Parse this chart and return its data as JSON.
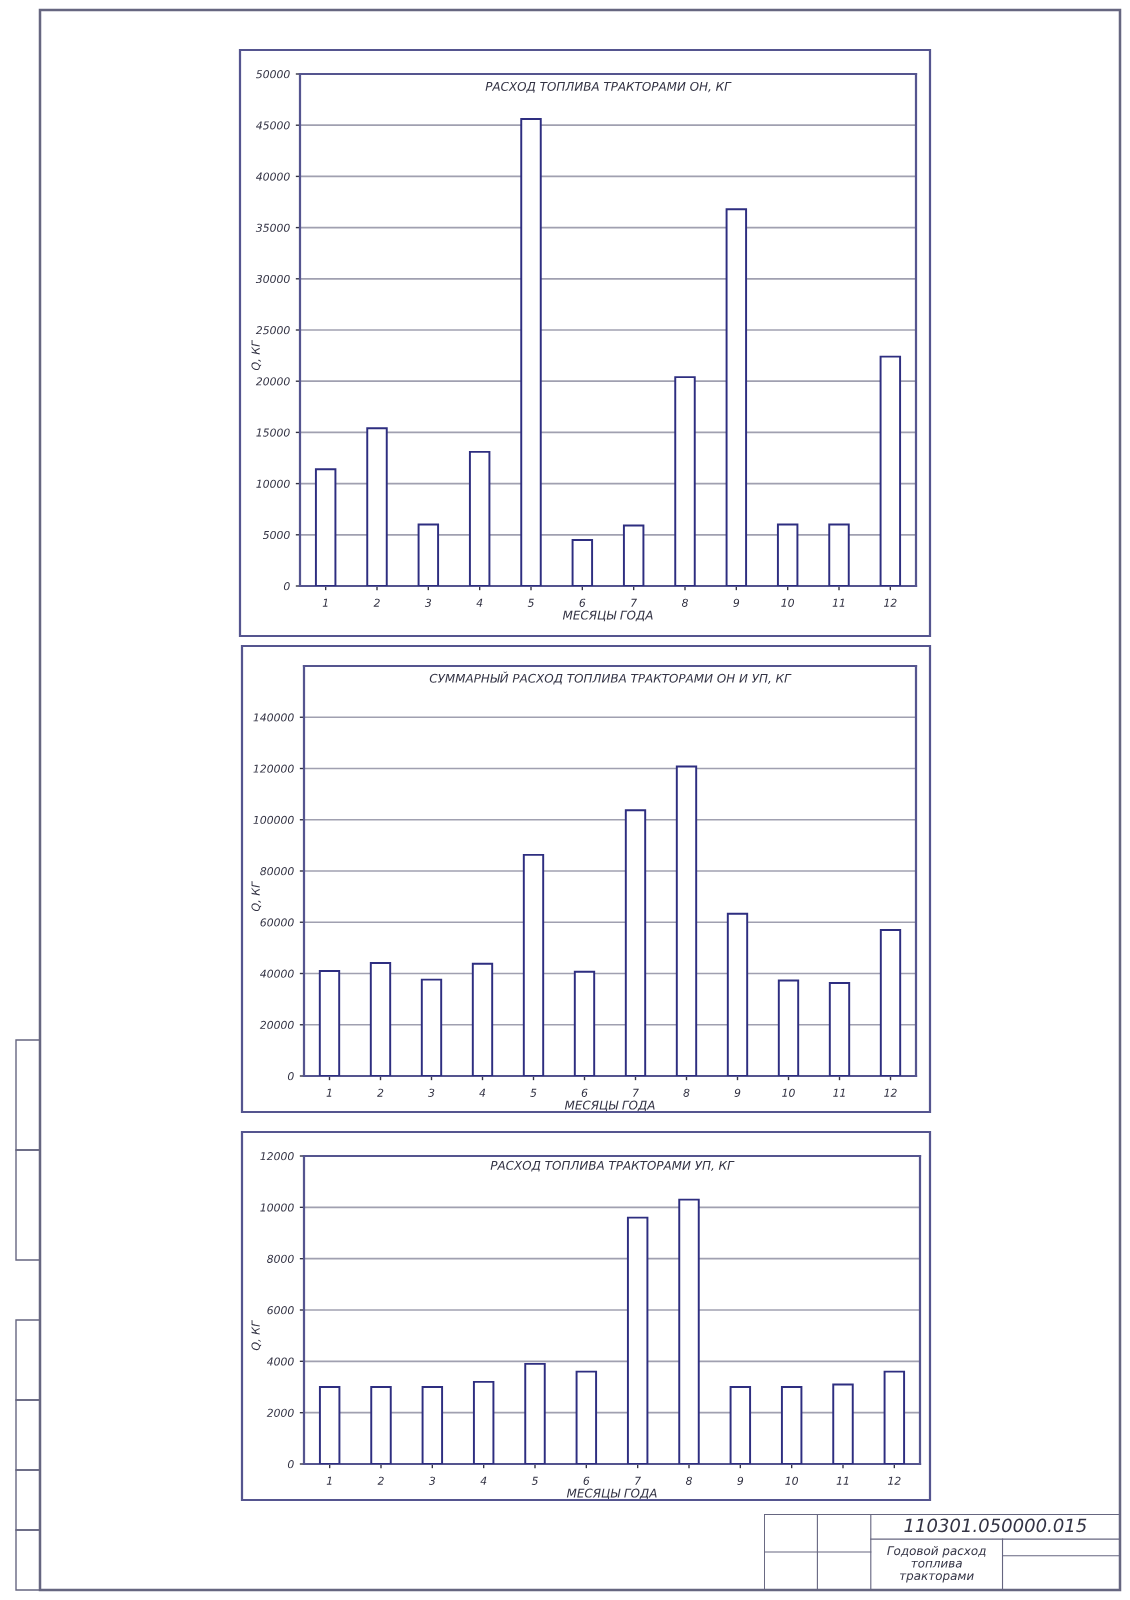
{
  "chart_data": [
    {
      "type": "bar",
      "title": "РАСХОД ТОПЛИВА ТРАКТОРАМИ ОН, КГ",
      "xlabel": "МЕСЯЦЫ ГОДА",
      "ylabel": "Q, КГ",
      "categories": [
        "1",
        "2",
        "3",
        "4",
        "5",
        "6",
        "7",
        "8",
        "9",
        "10",
        "11",
        "12"
      ],
      "values": [
        11400,
        15400,
        6000,
        13100,
        45600,
        4500,
        5900,
        20400,
        36800,
        6000,
        6000,
        22400
      ],
      "color": "#ffffff",
      "ylim": [
        0,
        50000
      ],
      "yticks": [
        0,
        5000,
        10000,
        15000,
        20000,
        25000,
        30000,
        35000,
        40000,
        45000,
        50000
      ],
      "grid": "y"
    },
    {
      "type": "bar",
      "title": "СУММАРНЫЙ РАСХОД ТОПЛИВА ТРАКТОРАМИ ОН И УП, КГ",
      "xlabel": "МЕСЯЦЫ ГОДА",
      "ylabel": "Q, КГ",
      "categories": [
        "1",
        "2",
        "3",
        "4",
        "5",
        "6",
        "7",
        "8",
        "9",
        "10",
        "11",
        "12"
      ],
      "values": [
        41000,
        44100,
        37600,
        43800,
        86300,
        40700,
        103700,
        120800,
        63300,
        37300,
        36300,
        57000
      ],
      "color": "#ffffff",
      "ylim": [
        0,
        160000
      ],
      "yticks": [
        0,
        20000,
        40000,
        60000,
        80000,
        100000,
        120000,
        140000
      ],
      "grid": "y"
    },
    {
      "type": "bar",
      "title": "РАСХОД ТОПЛИВА ТРАКТОРАМИ УП, КГ",
      "xlabel": "МЕСЯЦЫ ГОДА",
      "ylabel": "Q, КГ",
      "categories": [
        "1",
        "2",
        "3",
        "4",
        "5",
        "6",
        "7",
        "8",
        "9",
        "10",
        "11",
        "12"
      ],
      "values": [
        3000,
        3000,
        3000,
        3200,
        3900,
        3600,
        9600,
        10300,
        3000,
        3000,
        3100,
        3600
      ],
      "color": "#ffffff",
      "ylim": [
        0,
        12000
      ],
      "yticks": [
        0,
        2000,
        4000,
        6000,
        8000,
        10000,
        12000
      ],
      "grid": "y"
    },
    {
      "type": "other",
      "title": "110301.050000.015",
      "annotations": [
        "Годовой расход\nтоплива\nтракторами"
      ]
    }
  ]
}
